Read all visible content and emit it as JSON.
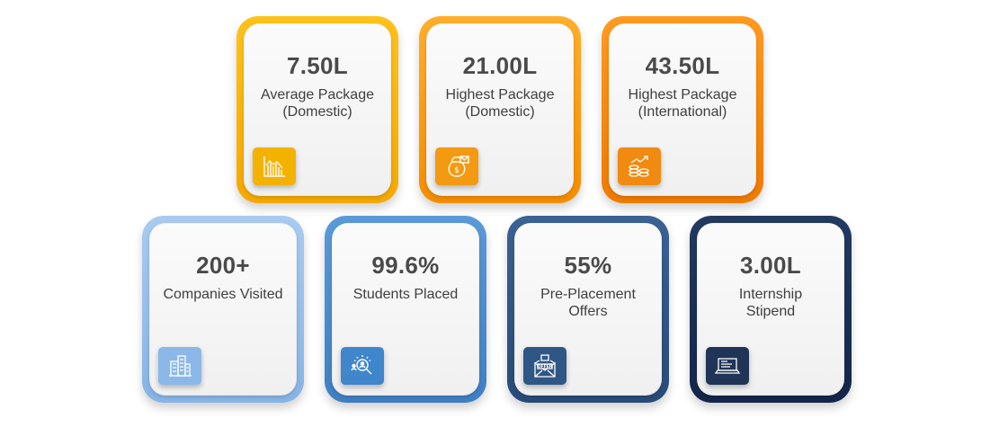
{
  "cards": [
    {
      "value": "7.50L",
      "label_line1": "Average Package",
      "label_line2": "(Domestic)",
      "icon": "bar-chart-icon",
      "frame_color": "#f5b000"
    },
    {
      "value": "21.00L",
      "label_line1": "Highest Package",
      "label_line2": "(Domestic)",
      "icon": "money-bag-icon",
      "frame_color": "#f79a0a"
    },
    {
      "value": "43.50L",
      "label_line1": "Highest Package",
      "label_line2": "(International)",
      "icon": "coins-growth-icon",
      "frame_color": "#f28300"
    },
    {
      "value": "200+",
      "label_line1": "Companies Visited",
      "label_line2": "",
      "icon": "buildings-icon",
      "frame_color": "#9cc2ec"
    },
    {
      "value": "99.6%",
      "label_line1": "Students Placed",
      "label_line2": "",
      "icon": "people-search-icon",
      "frame_color": "#4a8bd0"
    },
    {
      "value": "55%",
      "label_line1": "Pre-Placement",
      "label_line2": "Offers",
      "icon": "offer-letter-icon",
      "frame_color": "#31578a"
    },
    {
      "value": "3.00L",
      "label_line1": "Internship",
      "label_line2": "Stipend",
      "icon": "laptop-icon",
      "frame_color": "#1b2f55"
    }
  ]
}
